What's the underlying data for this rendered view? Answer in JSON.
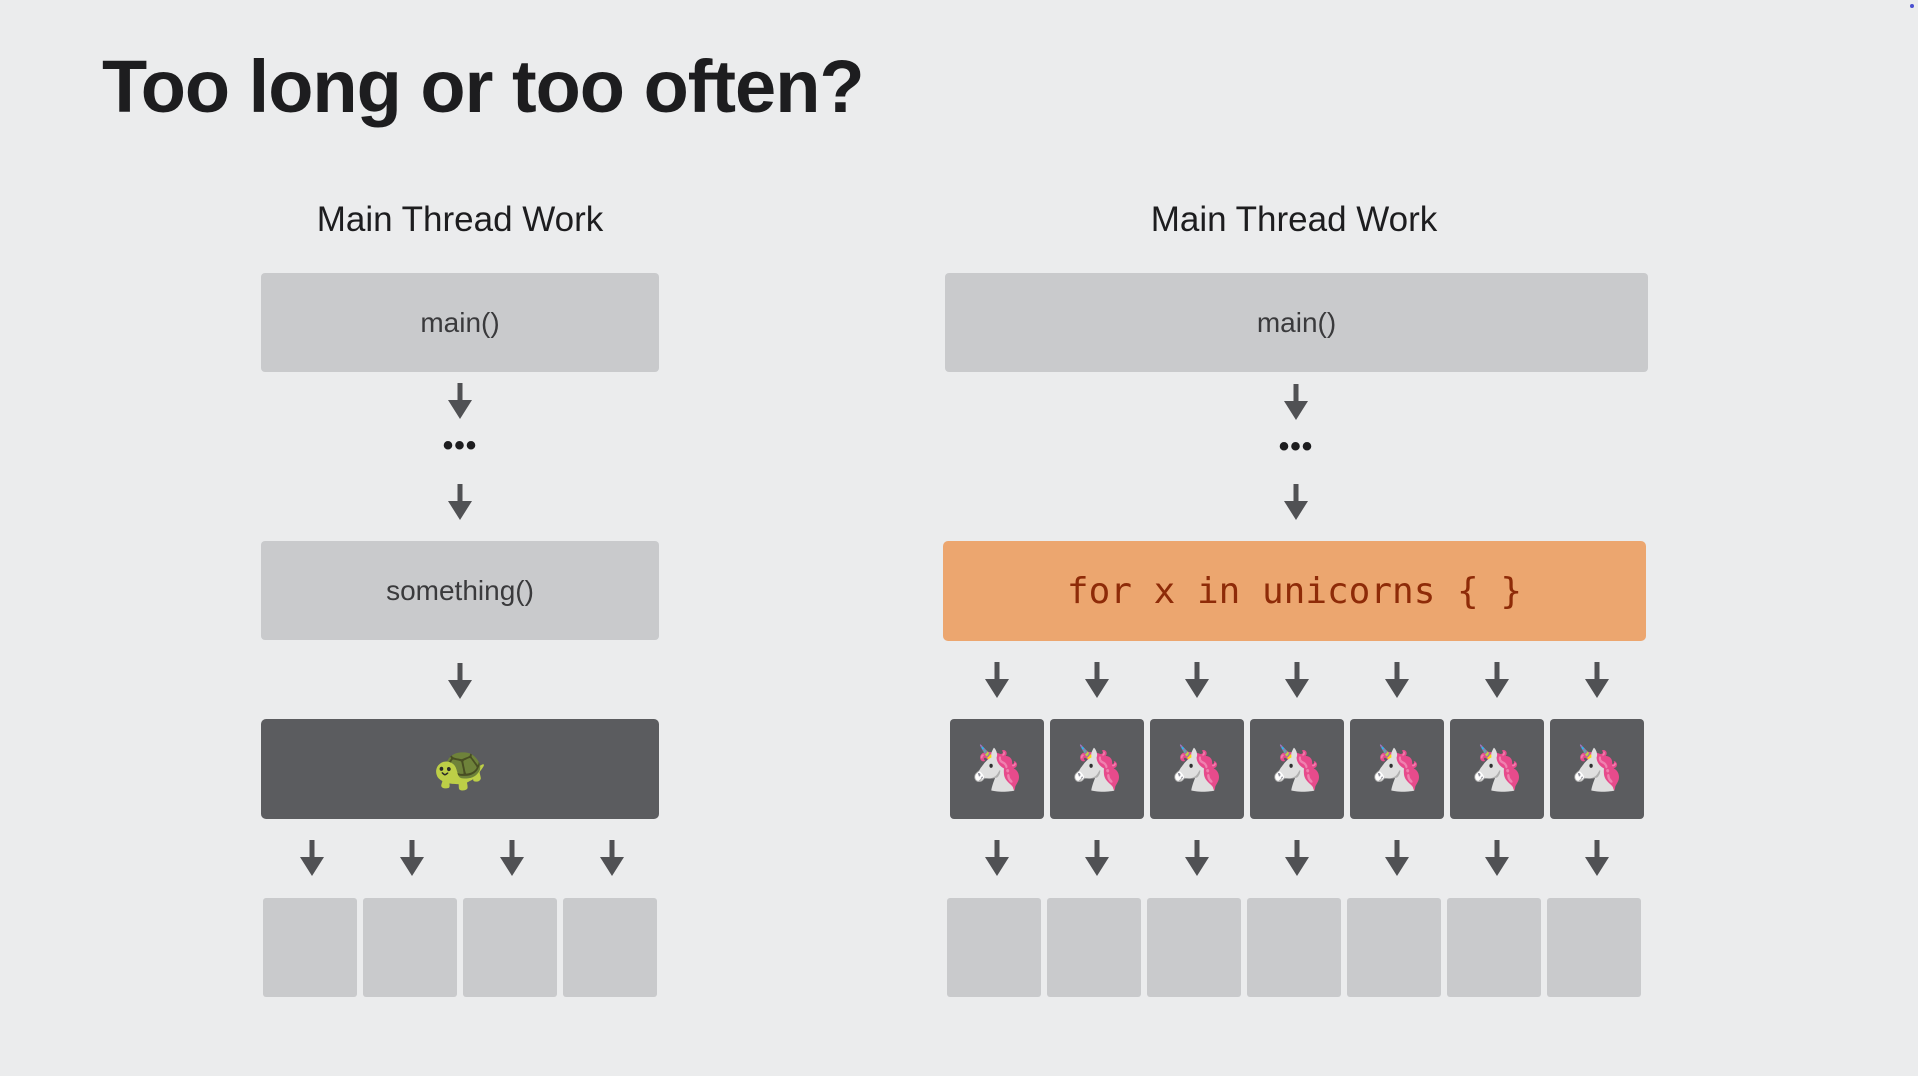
{
  "slide": {
    "title": "Too long or too often?"
  },
  "left_diagram": {
    "heading": "Main Thread Work",
    "main_label": "main()",
    "ellipsis": "•••",
    "something_label": "something()",
    "slow_item_icon": "turtle",
    "slow_item_glyph": "🐢",
    "output_slots": 4
  },
  "right_diagram": {
    "heading": "Main Thread Work",
    "main_label": "main()",
    "ellipsis": "•••",
    "loop_label": "for x in unicorns { }",
    "loop_item_icon": "unicorn",
    "loop_item_glyph": "🦄",
    "loop_items": 7,
    "output_slots": 7
  },
  "colors": {
    "background": "#ebeced",
    "light_box": "#c9cacc",
    "dark_box": "#5b5c5f",
    "highlight": "#eca66f",
    "highlight_text": "#8e2b08",
    "arrow": "#505154"
  }
}
